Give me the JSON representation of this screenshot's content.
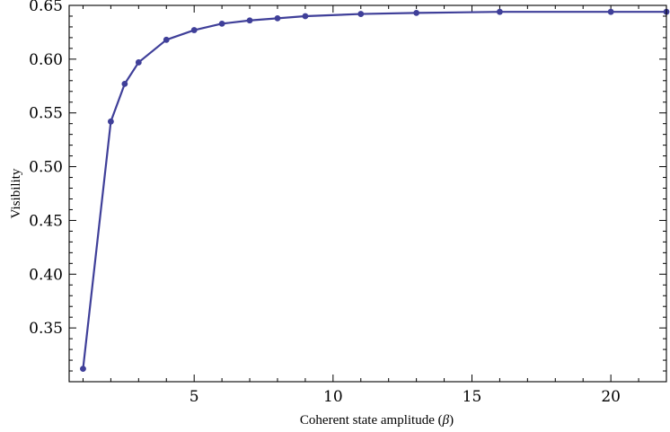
{
  "chart_data": {
    "type": "line",
    "title": "",
    "xlabel_main": "Coherent state amplitude (",
    "xlabel_symbol": "β",
    "xlabel_close": ")",
    "ylabel": "Visibility",
    "xlim": [
      0.5,
      22
    ],
    "ylim": [
      0.3,
      0.65
    ],
    "x_ticks": [
      5,
      10,
      15,
      20
    ],
    "y_ticks": [
      0.35,
      0.4,
      0.45,
      0.5,
      0.55,
      0.6,
      0.65
    ],
    "x_tick_labels": [
      "5",
      "10",
      "15",
      "20"
    ],
    "y_tick_labels": [
      "0.35",
      "0.40",
      "0.45",
      "0.50",
      "0.55",
      "0.60",
      "0.65"
    ],
    "grid": false,
    "series": [
      {
        "color": "#3f3f99",
        "x": [
          1,
          2,
          2.5,
          3,
          4,
          5,
          6,
          7,
          8,
          9,
          11,
          13,
          16,
          20,
          22
        ],
        "y": [
          0.312,
          0.542,
          0.577,
          0.597,
          0.618,
          0.627,
          0.633,
          0.636,
          0.638,
          0.64,
          0.642,
          0.643,
          0.644,
          0.644,
          0.644
        ]
      }
    ]
  }
}
